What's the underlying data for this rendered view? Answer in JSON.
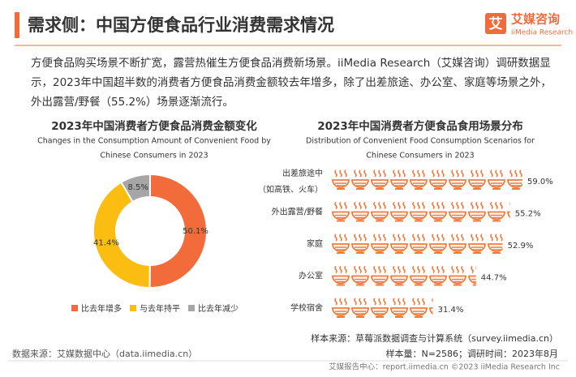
{
  "header": {
    "title": "需求侧：中国方便食品行业消费需求情况",
    "logo_icon": "艾",
    "logo_cn": "艾媒咨询",
    "logo_en": "iiMedia Research"
  },
  "description": [
    "方便食品购买场景不断扩宽，露营热催生方便食品消费新场景。iiMedia Research（艾媒咨询）调研数据显",
    "示，2023年中国超半数的消费者方便食品消费金额较去年增多，除了出差旅途、办公室、家庭等场景之外，",
    "外出露营/野餐（55.2%）场景逐渐流行。"
  ],
  "chart_data": [
    {
      "type": "pie",
      "donut": true,
      "title": "2023年中国消费者方便食品消费金额变化",
      "subtitle": [
        "Changes in the Consumption Amount of Convenient Food by",
        "Chinese Consumers in 2023"
      ],
      "categories": [
        "比去年增多",
        "与去年持平",
        "比去年减少"
      ],
      "values": [
        50.1,
        41.4,
        8.5
      ],
      "value_labels": [
        "50.1%",
        "41.4%",
        "8.5%"
      ],
      "colors": [
        "#f26b3a",
        "#fbbd12",
        "#a6a6a6"
      ],
      "legend": "bottom"
    },
    {
      "type": "pictograph",
      "title": "2023年中国消费者方便食品食用场景分布",
      "subtitle": [
        "Distribution of Convenient Food Consumption Scenarios for",
        "Chinese Consumers in 2023"
      ],
      "categories": [
        [
          "出差旅途中",
          "（如高铁、火车）"
        ],
        "外出露营/野餐",
        "家庭",
        "办公室",
        "学校宿舍"
      ],
      "values": [
        59.0,
        55.2,
        52.9,
        44.7,
        31.4
      ],
      "value_labels": [
        "59.0%",
        "55.2%",
        "52.9%",
        "44.7%",
        "31.4%"
      ],
      "color": "#f07a3e",
      "xlim": [
        0,
        60
      ]
    }
  ],
  "notes": {
    "sample_source": "样本来源：草莓派数据调查与计算系统（survey.iimedia.cn）",
    "sample_size": "样本量：N=2586；调研时间：2023年8月",
    "data_source": "数据来源：艾媒数据中心（data.iimedia.cn）",
    "footer": "艾媒报告中心：report.iimedia.cn  ©2023  iiMedia Research Inc"
  }
}
